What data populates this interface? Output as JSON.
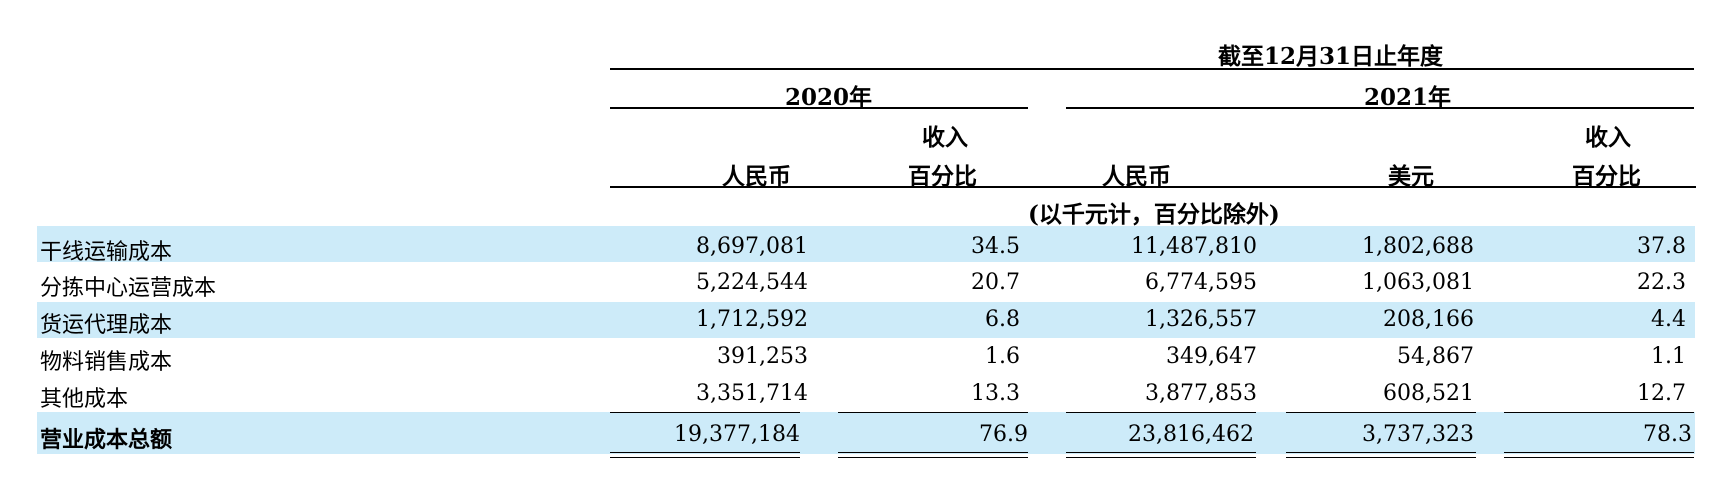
{
  "header": {
    "period_title": "截至12月31日止年度",
    "year_2020": "2020年",
    "year_2021": "2021年",
    "col_rmb_2020": "人民币",
    "col_pct_2020_line1": "收入",
    "col_pct_2020_line2": "百分比",
    "col_rmb_2021": "人民币",
    "col_usd_2021": "美元",
    "col_pct_2021_line1": "收入",
    "col_pct_2021_line2": "百分比",
    "unit_note": "(以千元计，百分比除外)"
  },
  "rows": [
    {
      "label": "干线运输成本",
      "rmb2020": "8,697,081",
      "pct2020": "34.5",
      "rmb2021": "11,487,810",
      "usd2021": "1,802,688",
      "pct2021": "37.8"
    },
    {
      "label": "分拣中心运营成本",
      "rmb2020": "5,224,544",
      "pct2020": "20.7",
      "rmb2021": "6,774,595",
      "usd2021": "1,063,081",
      "pct2021": "22.3"
    },
    {
      "label": "货运代理成本",
      "rmb2020": "1,712,592",
      "pct2020": "6.8",
      "rmb2021": "1,326,557",
      "usd2021": "208,166",
      "pct2021": "4.4"
    },
    {
      "label": "物料销售成本",
      "rmb2020": "391,253",
      "pct2020": "1.6",
      "rmb2021": "349,647",
      "usd2021": "54,867",
      "pct2021": "1.1"
    },
    {
      "label": "其他成本",
      "rmb2020": "3,351,714",
      "pct2020": "13.3",
      "rmb2021": "3,877,853",
      "usd2021": "608,521",
      "pct2021": "12.7"
    }
  ],
  "total": {
    "label": "营业成本总额",
    "rmb2020": "19,377,184",
    "pct2020": "76.9",
    "rmb2021": "23,816,462",
    "usd2021": "3,737,323",
    "pct2021": "78.3"
  },
  "colors": {
    "band": "#cdebf9"
  }
}
